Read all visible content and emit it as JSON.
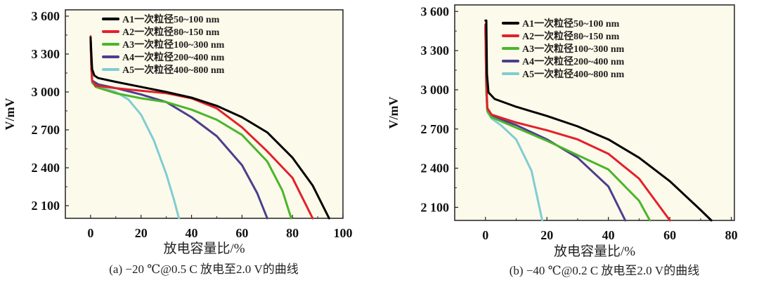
{
  "colors": {
    "A1": "#000000",
    "A2": "#e3202b",
    "A3": "#4ab52c",
    "A4": "#4a3f8e",
    "A5": "#7fcdd3",
    "plot_bg": "#fcfaea"
  },
  "chart_data": [
    {
      "type": "line",
      "title": "(a) −20 ℃@0.5 C 放电至2.0 V的曲线",
      "xlabel": "放电容量比/%",
      "ylabel": "V/mV",
      "xlim": [
        -10,
        100
      ],
      "ylim": [
        2000,
        3650
      ],
      "xticks": [
        0,
        20,
        40,
        60,
        80,
        100
      ],
      "xtick_labels": [
        "0",
        "20",
        "40",
        "60",
        "80",
        "100"
      ],
      "yticks": [
        2100,
        2400,
        2700,
        3000,
        3300,
        3600
      ],
      "ytick_labels": [
        "2 100",
        "2 400",
        "2 700",
        "3 000",
        "3 300",
        "3 600"
      ],
      "legend_position": "top-left",
      "series": [
        {
          "name": "A1一次粒径50~100 nm",
          "key": "A1",
          "points": [
            [
              0,
              3430
            ],
            [
              0.3,
              3300
            ],
            [
              0.6,
              3180
            ],
            [
              1.5,
              3130
            ],
            [
              3,
              3110
            ],
            [
              10,
              3080
            ],
            [
              20,
              3040
            ],
            [
              30,
              3000
            ],
            [
              40,
              2955
            ],
            [
              50,
              2890
            ],
            [
              60,
              2800
            ],
            [
              70,
              2680
            ],
            [
              80,
              2480
            ],
            [
              88,
              2260
            ],
            [
              94.5,
              2000
            ]
          ]
        },
        {
          "name": "A2一次粒径80~150 nm",
          "key": "A2",
          "points": [
            [
              0,
              3440
            ],
            [
              0.3,
              3200
            ],
            [
              0.6,
              3090
            ],
            [
              2,
              3050
            ],
            [
              10,
              3030
            ],
            [
              20,
              3010
            ],
            [
              30,
              2990
            ],
            [
              40,
              2950
            ],
            [
              50,
              2870
            ],
            [
              60,
              2720
            ],
            [
              70,
              2530
            ],
            [
              80,
              2320
            ],
            [
              88,
              2000
            ]
          ]
        },
        {
          "name": "A3一次粒径100~300 nm",
          "key": "A3",
          "points": [
            [
              0,
              3430
            ],
            [
              0.3,
              3200
            ],
            [
              0.6,
              3080
            ],
            [
              2,
              3040
            ],
            [
              10,
              2990
            ],
            [
              20,
              2950
            ],
            [
              30,
              2920
            ],
            [
              40,
              2860
            ],
            [
              50,
              2780
            ],
            [
              60,
              2660
            ],
            [
              70,
              2450
            ],
            [
              76,
              2220
            ],
            [
              79.5,
              2000
            ]
          ]
        },
        {
          "name": "A4一次粒径200~400 nm",
          "key": "A4",
          "points": [
            [
              0,
              3400
            ],
            [
              0.3,
              3200
            ],
            [
              0.6,
              3090
            ],
            [
              3,
              3060
            ],
            [
              10,
              3030
            ],
            [
              20,
              2980
            ],
            [
              30,
              2920
            ],
            [
              40,
              2800
            ],
            [
              50,
              2650
            ],
            [
              60,
              2420
            ],
            [
              66,
              2200
            ],
            [
              70,
              2000
            ]
          ]
        },
        {
          "name": "A5一次粒径400~800 nm",
          "key": "A5",
          "points": [
            [
              0,
              3420
            ],
            [
              0.3,
              3200
            ],
            [
              0.6,
              3070
            ],
            [
              3,
              3040
            ],
            [
              10,
              3000
            ],
            [
              15,
              2940
            ],
            [
              20,
              2820
            ],
            [
              25,
              2620
            ],
            [
              30,
              2350
            ],
            [
              33,
              2150
            ],
            [
              35,
              2000
            ]
          ]
        }
      ]
    },
    {
      "type": "line",
      "title": "(b) −40 ℃@0.2 C 放电至2.0 V的曲线",
      "xlabel": "放电容量比/%",
      "ylabel": "V/mV",
      "xlim": [
        -10,
        81
      ],
      "ylim": [
        2000,
        3650
      ],
      "xticks": [
        0,
        20,
        40,
        60,
        80
      ],
      "xtick_labels": [
        "0",
        "20",
        "40",
        "60",
        "80"
      ],
      "yticks": [
        2100,
        2400,
        2700,
        3000,
        3300,
        3600
      ],
      "ytick_labels": [
        "2 100",
        "2 400",
        "2 700",
        "3 000",
        "3 300",
        "3 600"
      ],
      "legend_position": "top-center",
      "series": [
        {
          "name": "A1一次粒径50~100 nm",
          "key": "A1",
          "points": [
            [
              0,
              3530
            ],
            [
              0.3,
              3530
            ],
            [
              0.5,
              3120
            ],
            [
              1,
              2980
            ],
            [
              3,
              2930
            ],
            [
              10,
              2870
            ],
            [
              20,
              2800
            ],
            [
              30,
              2720
            ],
            [
              40,
              2620
            ],
            [
              50,
              2480
            ],
            [
              60,
              2300
            ],
            [
              70,
              2080
            ],
            [
              73.5,
              2000
            ]
          ]
        },
        {
          "name": "A2一次粒径80~150 nm",
          "key": "A2",
          "points": [
            [
              0,
              3500
            ],
            [
              0.3,
              3100
            ],
            [
              0.6,
              2860
            ],
            [
              2,
              2810
            ],
            [
              10,
              2750
            ],
            [
              20,
              2690
            ],
            [
              30,
              2620
            ],
            [
              40,
              2510
            ],
            [
              50,
              2320
            ],
            [
              60,
              2000
            ]
          ]
        },
        {
          "name": "A3一次粒径100~300 nm",
          "key": "A3",
          "points": [
            [
              0,
              3470
            ],
            [
              0.3,
              3000
            ],
            [
              0.6,
              2840
            ],
            [
              2,
              2790
            ],
            [
              10,
              2710
            ],
            [
              20,
              2610
            ],
            [
              30,
              2500
            ],
            [
              40,
              2390
            ],
            [
              50,
              2150
            ],
            [
              53.5,
              2000
            ]
          ]
        },
        {
          "name": "A4一次粒径200~400 nm",
          "key": "A4",
          "points": [
            [
              0,
              3480
            ],
            [
              0.3,
              3000
            ],
            [
              0.6,
              2850
            ],
            [
              2,
              2800
            ],
            [
              10,
              2730
            ],
            [
              20,
              2620
            ],
            [
              30,
              2480
            ],
            [
              40,
              2260
            ],
            [
              45.5,
              2000
            ]
          ]
        },
        {
          "name": "A5一次粒径400~800 nm",
          "key": "A5",
          "points": [
            [
              0,
              3430
            ],
            [
              0.3,
              3000
            ],
            [
              0.6,
              2830
            ],
            [
              2,
              2780
            ],
            [
              5,
              2730
            ],
            [
              10,
              2620
            ],
            [
              15,
              2380
            ],
            [
              18.5,
              2000
            ]
          ]
        }
      ]
    }
  ]
}
